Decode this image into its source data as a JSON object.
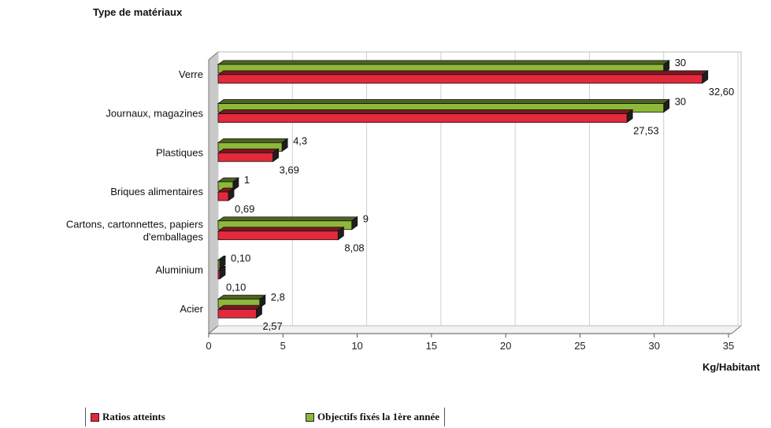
{
  "chart_data": {
    "type": "bar",
    "orientation": "horizontal",
    "title": "Type de matériaux",
    "xlabel": "Kg/Habitant",
    "xlim": [
      0,
      35
    ],
    "xticks": [
      "0",
      "5",
      "10",
      "15",
      "20",
      "25",
      "30",
      "35"
    ],
    "categories": [
      "Verre",
      "Journaux, magazines",
      "Plastiques",
      "Briques alimentaires",
      "Cartons, cartonnettes, papiers d'emballages",
      "Aluminium",
      "Acier"
    ],
    "category_lines": [
      [
        "Verre"
      ],
      [
        "Journaux, magazines"
      ],
      [
        "Plastiques"
      ],
      [
        "Briques alimentaires"
      ],
      [
        "Cartons, cartonnettes, papiers",
        "d'emballages"
      ],
      [
        "Aluminium"
      ],
      [
        "Acier"
      ]
    ],
    "series": [
      {
        "name": "Objectifs fixés la 1ère année",
        "color": "#8db83a",
        "values": [
          30,
          30,
          4.3,
          1,
          9,
          0.1,
          2.8
        ],
        "labels": [
          "30",
          "30",
          "4,3",
          "1",
          "9",
          "0,10",
          "2,8"
        ]
      },
      {
        "name": "Ratios atteints",
        "color": "#e3293b",
        "values": [
          32.6,
          27.53,
          3.69,
          0.69,
          8.08,
          0.1,
          2.57
        ],
        "labels": [
          "32,60",
          "27,53",
          "3,69",
          "0,69",
          "8,08",
          "0,10",
          "2,57"
        ]
      }
    ],
    "grid": true,
    "legend_position": "bottom"
  },
  "legend": {
    "red_label": "Ratios atteints",
    "green_label": "Objectifs fixés la 1ère année",
    "red_color": "#e3293b",
    "green_color": "#8db83a"
  }
}
